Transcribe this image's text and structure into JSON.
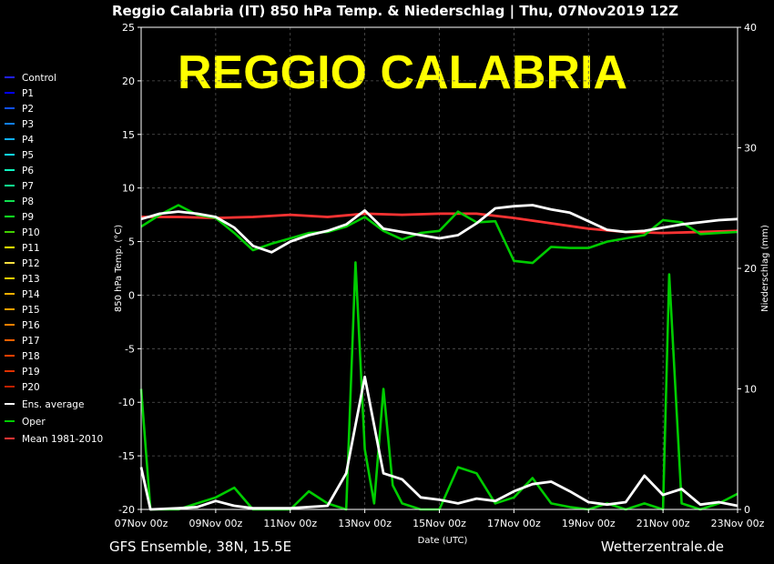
{
  "header": {
    "title": "Reggio Calabria  (IT)  850 hPa Temp. & Niederschlag | Thu, 07Nov2019 12Z",
    "overlay": "REGGIO CALABRIA"
  },
  "footer": {
    "model": "GFS Ensemble, 38N, 15.5E",
    "site": "Wetterzentrale.de"
  },
  "colors": {
    "background": "#000000",
    "overlay": "#ffff00",
    "grid": "#555555",
    "ensemble_average": "#ffffff",
    "oper": "#00cc00",
    "mean": "#ff3333"
  },
  "chart_data": {
    "type": "line",
    "xlabel": "Date (UTC)",
    "ylabel_left": "850 hPa Temp. (°C)",
    "ylabel_right": "Niederschlag (mm)",
    "ylim_left": [
      -20,
      25
    ],
    "ylim_right": [
      0,
      40
    ],
    "xlim_hours": [
      0,
      384
    ],
    "y_ticks_left": [
      25,
      20,
      15,
      10,
      5,
      0,
      -5,
      -10,
      -15,
      -20
    ],
    "y_ticks_right": [
      40,
      30,
      20,
      10,
      0
    ],
    "x_ticks": [
      {
        "label": "07Nov 00z",
        "hour": 0
      },
      {
        "label": "09Nov 00z",
        "hour": 48
      },
      {
        "label": "11Nov 00z",
        "hour": 96
      },
      {
        "label": "13Nov 00z",
        "hour": 144
      },
      {
        "label": "15Nov 00z",
        "hour": 192
      },
      {
        "label": "17Nov 00z",
        "hour": 240
      },
      {
        "label": "19Nov 00z",
        "hour": 288
      },
      {
        "label": "21Nov 00z",
        "hour": 336
      },
      {
        "label": "23Nov 00z",
        "hour": 384
      }
    ],
    "grid": true,
    "legend_position": "left",
    "legend": [
      {
        "name": "Control",
        "color": "#2020ff"
      },
      {
        "name": "P1",
        "color": "#0000ff"
      },
      {
        "name": "P2",
        "color": "#1050ff"
      },
      {
        "name": "P3",
        "color": "#1080ff"
      },
      {
        "name": "P4",
        "color": "#10b0ff"
      },
      {
        "name": "P5",
        "color": "#10e0ff"
      },
      {
        "name": "P6",
        "color": "#10ffc0"
      },
      {
        "name": "P7",
        "color": "#10ff90"
      },
      {
        "name": "P8",
        "color": "#10e050"
      },
      {
        "name": "P9",
        "color": "#10ff20"
      },
      {
        "name": "P10",
        "color": "#40d000"
      },
      {
        "name": "P11",
        "color": "#ffff00"
      },
      {
        "name": "P12",
        "color": "#ffe040"
      },
      {
        "name": "P13",
        "color": "#ffd000"
      },
      {
        "name": "P14",
        "color": "#ffb000"
      },
      {
        "name": "P15",
        "color": "#ffa000"
      },
      {
        "name": "P16",
        "color": "#ff8000"
      },
      {
        "name": "P17",
        "color": "#ff6000"
      },
      {
        "name": "P18",
        "color": "#ff4000"
      },
      {
        "name": "P19",
        "color": "#e03000"
      },
      {
        "name": "P20",
        "color": "#c02000"
      },
      {
        "name": "Ens. average",
        "color": "#ffffff"
      },
      {
        "name": "Oper",
        "color": "#00cc00"
      },
      {
        "name": "Mean 1981-2010",
        "color": "#ff3333"
      }
    ],
    "series": [
      {
        "name": "Ens. average",
        "axis": "left",
        "points": [
          [
            0,
            7.1
          ],
          [
            12,
            7.6
          ],
          [
            24,
            7.8
          ],
          [
            36,
            7.6
          ],
          [
            48,
            7.3
          ],
          [
            60,
            6.3
          ],
          [
            72,
            4.6
          ],
          [
            84,
            4.0
          ],
          [
            96,
            5.0
          ],
          [
            108,
            5.6
          ],
          [
            120,
            6.0
          ],
          [
            132,
            6.6
          ],
          [
            144,
            7.9
          ],
          [
            156,
            6.2
          ],
          [
            168,
            5.9
          ],
          [
            180,
            5.6
          ],
          [
            192,
            5.3
          ],
          [
            204,
            5.6
          ],
          [
            216,
            6.7
          ],
          [
            228,
            8.1
          ],
          [
            240,
            8.3
          ],
          [
            252,
            8.4
          ],
          [
            264,
            8.0
          ],
          [
            276,
            7.7
          ],
          [
            288,
            6.9
          ],
          [
            300,
            6.1
          ],
          [
            312,
            5.9
          ],
          [
            324,
            6.0
          ],
          [
            336,
            6.3
          ],
          [
            348,
            6.6
          ],
          [
            360,
            6.8
          ],
          [
            372,
            7.0
          ],
          [
            384,
            7.1
          ]
        ]
      },
      {
        "name": "Oper",
        "axis": "left",
        "points": [
          [
            0,
            6.4
          ],
          [
            12,
            7.5
          ],
          [
            24,
            8.4
          ],
          [
            36,
            7.5
          ],
          [
            48,
            7.2
          ],
          [
            60,
            5.8
          ],
          [
            72,
            4.2
          ],
          [
            84,
            4.8
          ],
          [
            96,
            5.3
          ],
          [
            108,
            5.8
          ],
          [
            120,
            5.9
          ],
          [
            132,
            6.4
          ],
          [
            144,
            7.3
          ],
          [
            156,
            6.0
          ],
          [
            168,
            5.2
          ],
          [
            180,
            5.8
          ],
          [
            192,
            6.0
          ],
          [
            204,
            7.8
          ],
          [
            216,
            6.8
          ],
          [
            228,
            6.9
          ],
          [
            240,
            3.2
          ],
          [
            252,
            3.0
          ],
          [
            264,
            4.5
          ],
          [
            276,
            4.4
          ],
          [
            288,
            4.4
          ],
          [
            300,
            5.0
          ],
          [
            312,
            5.3
          ],
          [
            324,
            5.6
          ],
          [
            336,
            7.0
          ],
          [
            348,
            6.8
          ],
          [
            360,
            5.7
          ],
          [
            372,
            5.8
          ],
          [
            384,
            5.9
          ]
        ]
      },
      {
        "name": "Mean 1981-2010",
        "axis": "left",
        "points": [
          [
            0,
            7.3
          ],
          [
            24,
            7.3
          ],
          [
            48,
            7.2
          ],
          [
            72,
            7.3
          ],
          [
            96,
            7.5
          ],
          [
            120,
            7.3
          ],
          [
            144,
            7.6
          ],
          [
            168,
            7.5
          ],
          [
            192,
            7.6
          ],
          [
            216,
            7.6
          ],
          [
            240,
            7.2
          ],
          [
            264,
            6.7
          ],
          [
            288,
            6.2
          ],
          [
            312,
            5.9
          ],
          [
            336,
            5.8
          ],
          [
            360,
            5.9
          ],
          [
            384,
            6.0
          ]
        ]
      },
      {
        "name": "Ens. average",
        "axis": "right",
        "points": [
          [
            0,
            3.5
          ],
          [
            6,
            0
          ],
          [
            24,
            0.1
          ],
          [
            36,
            0.2
          ],
          [
            48,
            0.7
          ],
          [
            60,
            0.3
          ],
          [
            72,
            0.1
          ],
          [
            96,
            0.1
          ],
          [
            120,
            0.3
          ],
          [
            132,
            3.0
          ],
          [
            144,
            11.0
          ],
          [
            156,
            3.0
          ],
          [
            168,
            2.5
          ],
          [
            180,
            1.0
          ],
          [
            192,
            0.8
          ],
          [
            204,
            0.5
          ],
          [
            216,
            0.9
          ],
          [
            228,
            0.7
          ],
          [
            240,
            1.5
          ],
          [
            252,
            2.1
          ],
          [
            264,
            2.3
          ],
          [
            276,
            1.5
          ],
          [
            288,
            0.6
          ],
          [
            300,
            0.4
          ],
          [
            312,
            0.6
          ],
          [
            324,
            2.8
          ],
          [
            336,
            1.2
          ],
          [
            348,
            1.7
          ],
          [
            360,
            0.4
          ],
          [
            372,
            0.6
          ],
          [
            384,
            0.3
          ]
        ]
      },
      {
        "name": "Oper",
        "axis": "right",
        "points": [
          [
            0,
            10
          ],
          [
            6,
            0
          ],
          [
            24,
            0
          ],
          [
            36,
            0.5
          ],
          [
            48,
            1.0
          ],
          [
            60,
            1.8
          ],
          [
            72,
            0
          ],
          [
            96,
            0
          ],
          [
            108,
            1.5
          ],
          [
            120,
            0.5
          ],
          [
            132,
            0
          ],
          [
            138,
            20.5
          ],
          [
            144,
            5.0
          ],
          [
            150,
            0.5
          ],
          [
            156,
            10.0
          ],
          [
            162,
            2.0
          ],
          [
            168,
            0.5
          ],
          [
            180,
            0
          ],
          [
            192,
            0
          ],
          [
            204,
            3.5
          ],
          [
            216,
            3.0
          ],
          [
            228,
            0.5
          ],
          [
            240,
            1.0
          ],
          [
            252,
            2.6
          ],
          [
            264,
            0.5
          ],
          [
            276,
            0.2
          ],
          [
            288,
            0
          ],
          [
            300,
            0.5
          ],
          [
            312,
            0
          ],
          [
            324,
            0.5
          ],
          [
            336,
            0
          ],
          [
            340,
            19.5
          ],
          [
            348,
            0.5
          ],
          [
            360,
            0
          ],
          [
            372,
            0.5
          ],
          [
            384,
            1.3
          ]
        ]
      }
    ]
  }
}
